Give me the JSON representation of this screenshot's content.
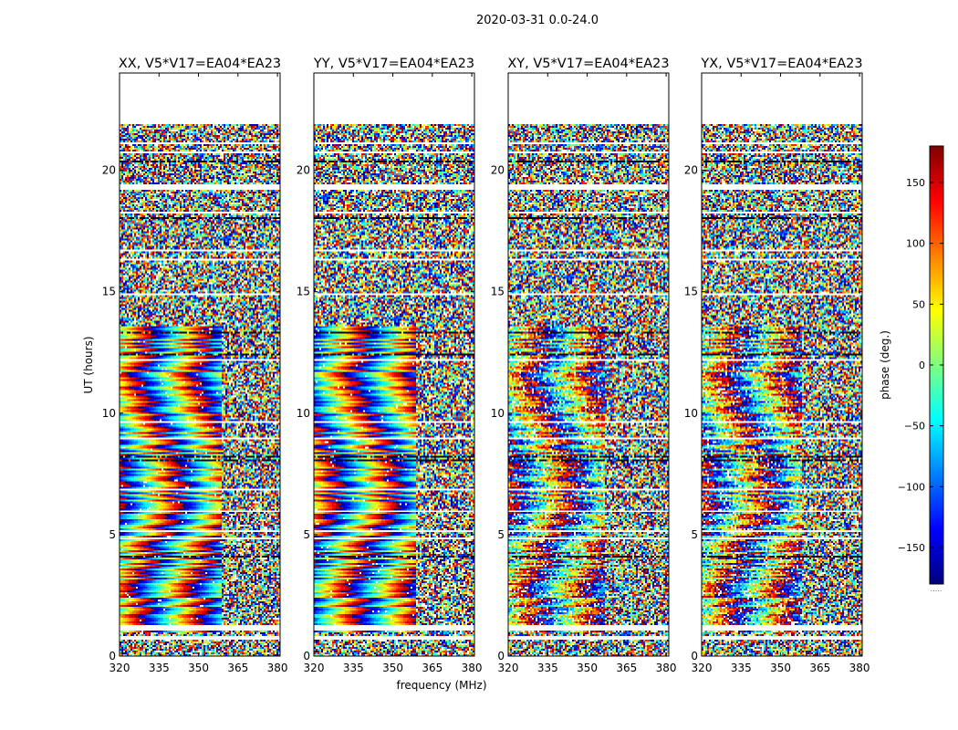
{
  "figure": {
    "suptitle": "2020-03-31 0.0-24.0",
    "ylabel": "UT (hours)",
    "xlabel": "frequency (MHz)",
    "colorbar_label": "phase (deg.)",
    "colorbar_dots": "....."
  },
  "colormap": [
    "#00007f",
    "#0000ff",
    "#007fff",
    "#00ffff",
    "#7fff7f",
    "#ffff00",
    "#ff7f00",
    "#ff0000",
    "#7f0000"
  ],
  "colorbar": {
    "range": [
      -180,
      180
    ],
    "ticks": [
      150,
      100,
      50,
      0,
      -50,
      -100,
      -150
    ],
    "tick_labels": [
      "150",
      "100",
      "50",
      "0",
      "−50",
      "−100",
      "−150"
    ]
  },
  "chart_data": [
    {
      "type": "heatmap",
      "title": "XX, V5*V17=EA04*EA23",
      "x_range": [
        320,
        381
      ],
      "y_range": [
        0,
        24
      ],
      "xticks": [
        320,
        335,
        350,
        365,
        380
      ],
      "yticks": [
        0,
        5,
        10,
        15,
        20
      ],
      "xtick_labels": [
        "320",
        "335",
        "350",
        "365",
        "380"
      ],
      "ytick_labels": [
        "0",
        "5",
        "10",
        "15",
        "20"
      ],
      "value_unit": "phase (deg.)",
      "coherent_region_mhz": [
        320,
        359
      ],
      "phase_wrap_center_mhz": 347,
      "data_hours": [
        0.0,
        21.9
      ]
    },
    {
      "type": "heatmap",
      "title": "YY, V5*V17=EA04*EA23",
      "x_range": [
        320,
        381
      ],
      "y_range": [
        0,
        24
      ],
      "xticks": [
        320,
        335,
        350,
        365,
        380
      ],
      "yticks": [
        0,
        5,
        10,
        15,
        20
      ],
      "xtick_labels": [
        "320",
        "335",
        "350",
        "365",
        "380"
      ],
      "ytick_labels": [
        "0",
        "5",
        "10",
        "15",
        "20"
      ],
      "value_unit": "phase (deg.)",
      "coherent_region_mhz": [
        320,
        359
      ],
      "phase_wrap_center_mhz": 333,
      "data_hours": [
        0.0,
        21.9
      ]
    },
    {
      "type": "heatmap",
      "title": "XY, V5*V17=EA04*EA23",
      "x_range": [
        320,
        381
      ],
      "y_range": [
        0,
        24
      ],
      "xticks": [
        320,
        335,
        350,
        365,
        380
      ],
      "yticks": [
        0,
        5,
        10,
        15,
        20
      ],
      "xtick_labels": [
        "320",
        "335",
        "350",
        "365",
        "380"
      ],
      "ytick_labels": [
        "0",
        "5",
        "10",
        "15",
        "20"
      ],
      "value_unit": "phase (deg.)",
      "coherent_region_mhz": [
        320,
        357
      ],
      "phase_wrap_center_mhz": 349,
      "data_hours": [
        0.0,
        21.9
      ]
    },
    {
      "type": "heatmap",
      "title": "YX, V5*V17=EA04*EA23",
      "x_range": [
        320,
        381
      ],
      "y_range": [
        0,
        24
      ],
      "xticks": [
        320,
        335,
        350,
        365,
        380
      ],
      "yticks": [
        0,
        5,
        10,
        15,
        20
      ],
      "xtick_labels": [
        "320",
        "335",
        "350",
        "365",
        "380"
      ],
      "ytick_labels": [
        "0",
        "5",
        "10",
        "15",
        "20"
      ],
      "value_unit": "phase (deg.)",
      "coherent_region_mhz": [
        320,
        358
      ],
      "phase_wrap_center_mhz": 350,
      "data_hours": [
        0.0,
        21.9
      ]
    }
  ],
  "gaps_hours": [
    [
      0.65,
      0.82
    ],
    [
      1.07,
      1.3
    ],
    [
      19.2,
      19.45
    ],
    [
      21.95,
      24.0
    ]
  ]
}
